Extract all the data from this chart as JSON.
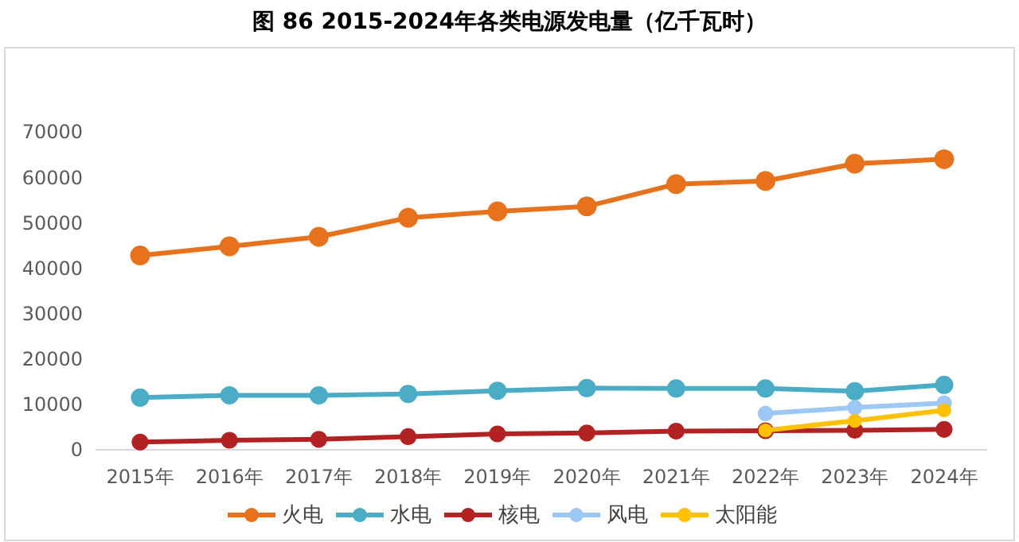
{
  "chart_data": {
    "type": "line",
    "title": "图 86 2015-2024年各类电源发电量（亿千瓦时）",
    "categories": [
      "2015年",
      "2016年",
      "2017年",
      "2018年",
      "2019年",
      "2020年",
      "2021年",
      "2022年",
      "2023年",
      "2024年"
    ],
    "series": [
      {
        "name": "火电",
        "color": "#e8711c",
        "values": [
          42800,
          44800,
          46900,
          51100,
          52500,
          53600,
          58500,
          59200,
          63000,
          64000
        ]
      },
      {
        "name": "水电",
        "color": "#4bacc6",
        "values": [
          11500,
          12000,
          12000,
          12300,
          13000,
          13600,
          13500,
          13500,
          12900,
          14300
        ]
      },
      {
        "name": "核电",
        "color": "#b22222",
        "values": [
          1700,
          2100,
          2300,
          2900,
          3500,
          3700,
          4100,
          4200,
          4300,
          4500
        ]
      },
      {
        "name": "风电",
        "color": "#9dc8f5",
        "values": [
          null,
          null,
          null,
          null,
          null,
          null,
          null,
          8000,
          9300,
          10300
        ]
      },
      {
        "name": "太阳能",
        "color": "#ffc000",
        "values": [
          null,
          null,
          null,
          null,
          null,
          null,
          null,
          4300,
          6400,
          8700
        ]
      }
    ],
    "ylim": [
      0,
      70000
    ],
    "yticks": [
      0,
      10000,
      20000,
      30000,
      40000,
      50000,
      60000,
      70000
    ],
    "grid": false,
    "legend": "bottom",
    "marker": "circle",
    "line_style": "solid"
  }
}
